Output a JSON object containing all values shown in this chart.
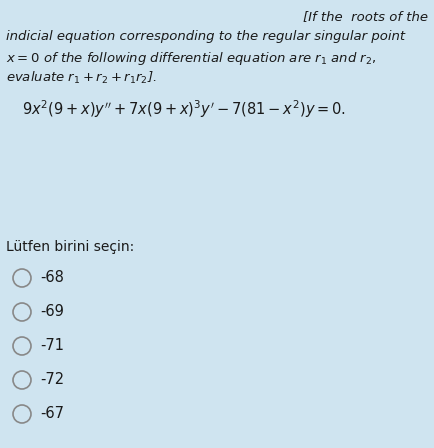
{
  "background_color": "#cfe4f0",
  "text_color": "#1a1a1a",
  "option_circle_color": "#888888",
  "font_size_body": 9.5,
  "font_size_equation": 10.5,
  "font_size_options": 10.5,
  "font_size_prompt": 10.0,
  "options": [
    "-68",
    "-69",
    "-71",
    "-72",
    "-67"
  ],
  "prompt": "Lütfen birini seçin:"
}
